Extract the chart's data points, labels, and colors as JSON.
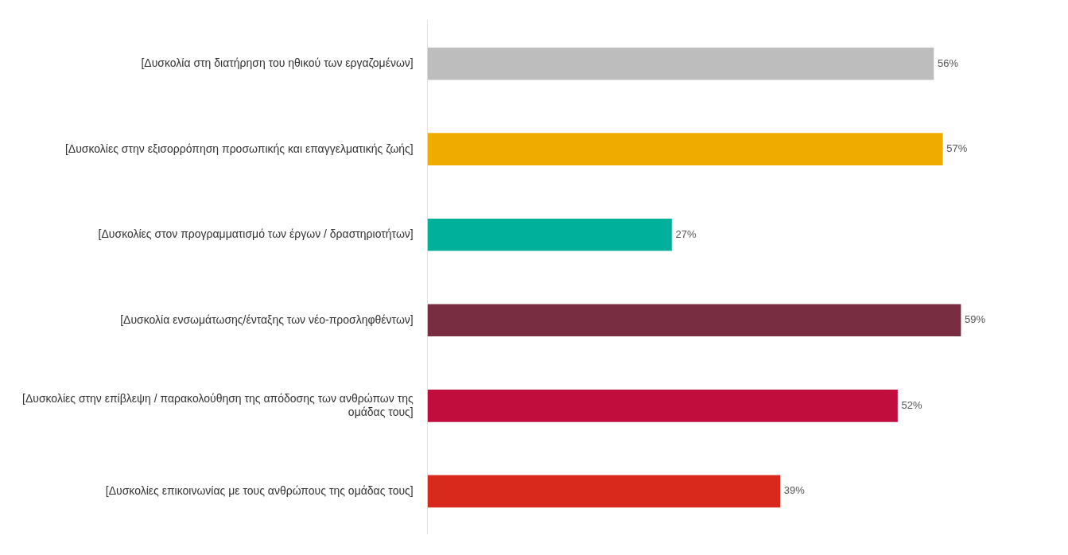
{
  "chart_data": {
    "type": "bar",
    "orientation": "horizontal",
    "categories": [
      "[Δυσκολία στη διατήρηση του ηθικού των εργαζομένων]",
      "[Δυσκολίες στην εξισορρόπηση προσωπικής και επαγγελματικής ζωής]",
      "[Δυσκολίες στον προγραμματισμό των έργων / δραστηριοτήτων]",
      "[Δυσκολία ενσωμάτωσης/ένταξης των νέο-προσληφθέντων]",
      "[Δυσκολίες στην επίβλεψη / παρακολούθηση της απόδοσης των ανθρώπων της ομάδας τους]",
      "[Δυσκολίες επικοινωνίας με τους ανθρώπους της ομάδας τους]"
    ],
    "values": [
      56,
      57,
      27,
      59,
      52,
      39
    ],
    "colors": [
      "#bdbdbd",
      "#f0ab00",
      "#00b09b",
      "#782d40",
      "#c00d3e",
      "#d9291c"
    ],
    "value_labels": [
      "56%",
      "57%",
      "27%",
      "59%",
      "52%",
      "39%"
    ],
    "legend": false,
    "grid": false
  }
}
